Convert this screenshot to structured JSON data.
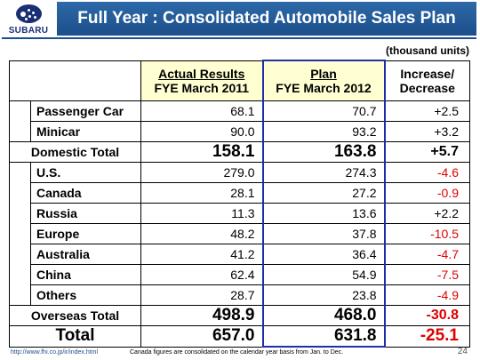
{
  "brand": {
    "logo_text": "SUBARU"
  },
  "title": "Full Year : Consolidated Automobile Sales Plan",
  "units": "(thousand units)",
  "headers": {
    "actual_line1": "Actual Results",
    "actual_line2": "FYE March 2011",
    "plan_line1": "Plan",
    "plan_line2": "FYE March 2012",
    "change_line1": "Increase/",
    "change_line2": "Decrease"
  },
  "domestic": {
    "rows": [
      {
        "label": "Passenger Car",
        "actual": "68.1",
        "plan": "70.7",
        "change": "+2.5"
      },
      {
        "label": "Minicar",
        "actual": "90.0",
        "plan": "93.2",
        "change": "+3.2"
      }
    ],
    "total": {
      "label": "Domestic Total",
      "actual": "158.1",
      "plan": "163.8",
      "change": "+5.7"
    }
  },
  "overseas": {
    "rows": [
      {
        "label": "U.S.",
        "actual": "279.0",
        "plan": "274.3",
        "change": "-4.6"
      },
      {
        "label": "Canada",
        "actual": "28.1",
        "plan": "27.2",
        "change": "-0.9"
      },
      {
        "label": "Russia",
        "actual": "11.3",
        "plan": "13.6",
        "change": "+2.2"
      },
      {
        "label": "Europe",
        "actual": "48.2",
        "plan": "37.8",
        "change": "-10.5"
      },
      {
        "label": "Australia",
        "actual": "41.2",
        "plan": "36.4",
        "change": "-4.7"
      },
      {
        "label": "China",
        "actual": "62.4",
        "plan": "54.9",
        "change": "-7.5"
      },
      {
        "label": "Others",
        "actual": "28.7",
        "plan": "23.8",
        "change": "-4.9"
      }
    ],
    "total": {
      "label": "Overseas Total",
      "actual": "498.9",
      "plan": "468.0",
      "change": "-30.8"
    }
  },
  "grand_total": {
    "label": "Total",
    "actual": "657.0",
    "plan": "631.8",
    "change": "-25.1"
  },
  "colors": {
    "header_shade": "#ffffd2",
    "highlight_border": "#1f2fa8",
    "negative": "#e00000",
    "title_bar": "#1c4f8a"
  },
  "footer": {
    "url": "http://www.fhi.co.jp/ir/index.html",
    "note": "Canada figures are consolidated on the calendar year basis from Jan. to Dec.",
    "page": "24"
  }
}
